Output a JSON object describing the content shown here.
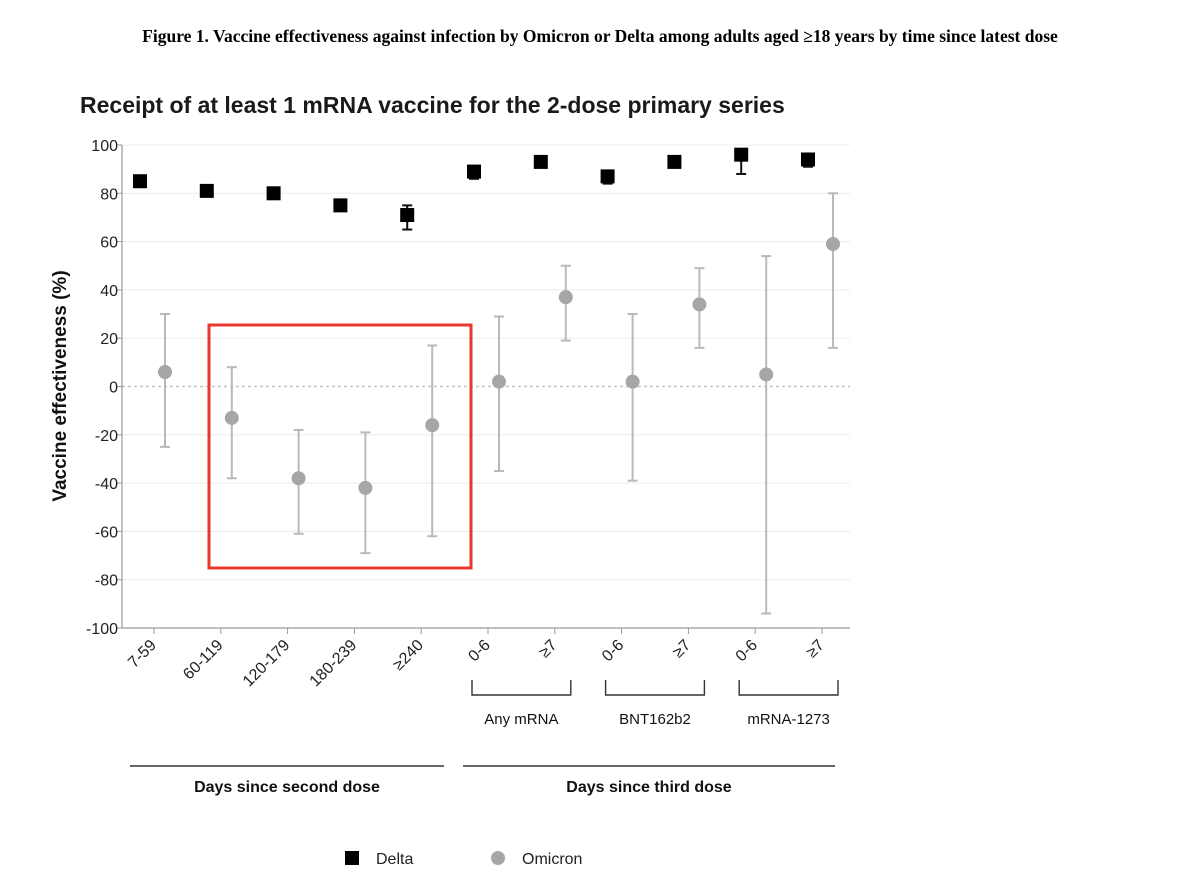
{
  "figure_caption": "Figure 1. Vaccine effectiveness against infection by Omicron or Delta among adults aged ≥18 years by time since latest dose",
  "chart_data": {
    "type": "scatter",
    "title": "Receipt of at least 1 mRNA vaccine for the 2-dose primary series",
    "ylabel": "Vaccine effectiveness (%)",
    "xlabel": "",
    "ylim": [
      -100,
      100
    ],
    "yticks": [
      100,
      80,
      60,
      40,
      20,
      0,
      -20,
      -40,
      -60,
      -80,
      -100
    ],
    "categories": [
      "7-59",
      "60-119",
      "120-179",
      "180-239",
      "≥240",
      "0-6",
      "≥7",
      "0-6",
      "≥7",
      "0-6",
      "≥7"
    ],
    "groups": [
      {
        "label": "Any mRNA",
        "from": 5,
        "to": 6
      },
      {
        "label": "BNT162b2",
        "from": 7,
        "to": 8
      },
      {
        "label": "mRNA-1273",
        "from": 9,
        "to": 10
      }
    ],
    "sections": [
      {
        "label": "Days since second dose",
        "from": 0,
        "to": 4
      },
      {
        "label": "Days since third dose",
        "from": 5,
        "to": 10
      }
    ],
    "series": [
      {
        "name": "Delta",
        "color": "#000000",
        "marker": "square",
        "values": [
          85,
          81,
          80,
          75,
          71,
          89,
          93,
          87,
          93,
          96,
          94
        ],
        "ci_low": [
          null,
          null,
          null,
          null,
          65,
          86,
          null,
          84,
          null,
          88,
          91
        ],
        "ci_high": [
          null,
          null,
          null,
          null,
          75,
          91,
          null,
          89,
          null,
          98,
          96
        ]
      },
      {
        "name": "Omicron",
        "color": "#a6a6a8",
        "marker": "circle",
        "values": [
          6,
          -13,
          -38,
          -42,
          -16,
          2,
          37,
          2,
          34,
          5,
          59
        ],
        "ci_low": [
          -25,
          -38,
          -61,
          -69,
          -62,
          -35,
          19,
          -39,
          16,
          -94,
          16
        ],
        "ci_high": [
          30,
          8,
          -18,
          -19,
          17,
          29,
          50,
          30,
          49,
          54,
          80
        ]
      }
    ],
    "highlight_box": {
      "color": "#e8372c",
      "from": 1,
      "to": 4
    },
    "reference_line": 0,
    "grid": true,
    "legend_placement": "bottom-center"
  }
}
